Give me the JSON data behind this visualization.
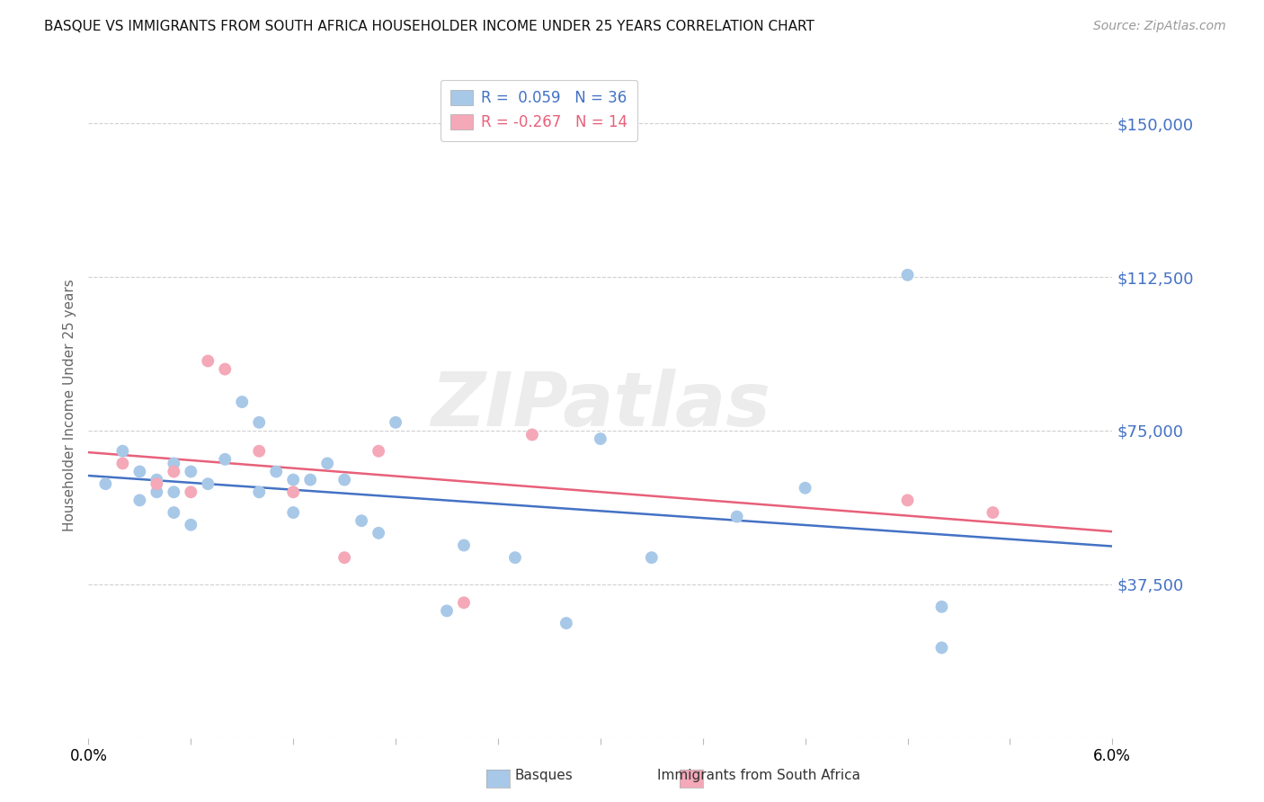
{
  "title": "BASQUE VS IMMIGRANTS FROM SOUTH AFRICA HOUSEHOLDER INCOME UNDER 25 YEARS CORRELATION CHART",
  "source": "Source: ZipAtlas.com",
  "ylabel": "Householder Income Under 25 years",
  "ytick_vals": [
    0,
    37500,
    75000,
    112500,
    150000
  ],
  "ytick_labels": [
    "",
    "$37,500",
    "$75,000",
    "$112,500",
    "$150,000"
  ],
  "basque_color": "#a8c8e8",
  "immig_color": "#f4a8b8",
  "line_basque_color": "#4472c4",
  "line_immig_color": "#e8607a",
  "ytick_color": "#4472c4",
  "watermark_text": "ZIPatlas",
  "legend_text_1": "R =  0.059   N = 36",
  "legend_text_2": "R = -0.267   N = 14",
  "basque_x": [
    0.001,
    0.002,
    0.003,
    0.003,
    0.004,
    0.004,
    0.005,
    0.005,
    0.005,
    0.006,
    0.006,
    0.007,
    0.008,
    0.009,
    0.01,
    0.01,
    0.011,
    0.012,
    0.012,
    0.013,
    0.014,
    0.015,
    0.016,
    0.017,
    0.018,
    0.021,
    0.022,
    0.025,
    0.028,
    0.03,
    0.033,
    0.038,
    0.042,
    0.048,
    0.05,
    0.05
  ],
  "basque_y": [
    62000,
    70000,
    58000,
    65000,
    60000,
    63000,
    55000,
    60000,
    67000,
    52000,
    65000,
    62000,
    68000,
    82000,
    77000,
    60000,
    65000,
    63000,
    55000,
    63000,
    67000,
    63000,
    53000,
    50000,
    77000,
    31000,
    47000,
    44000,
    28000,
    73000,
    44000,
    54000,
    61000,
    113000,
    32000,
    22000
  ],
  "immig_x": [
    0.002,
    0.004,
    0.005,
    0.006,
    0.007,
    0.008,
    0.01,
    0.012,
    0.015,
    0.017,
    0.022,
    0.026,
    0.048,
    0.053
  ],
  "immig_y": [
    67000,
    62000,
    65000,
    60000,
    92000,
    90000,
    70000,
    60000,
    44000,
    70000,
    33000,
    74000,
    58000,
    55000
  ],
  "xlim": [
    0.0,
    0.06
  ],
  "ylim": [
    0,
    162500
  ],
  "figsize": [
    14.06,
    8.92
  ],
  "dpi": 100
}
